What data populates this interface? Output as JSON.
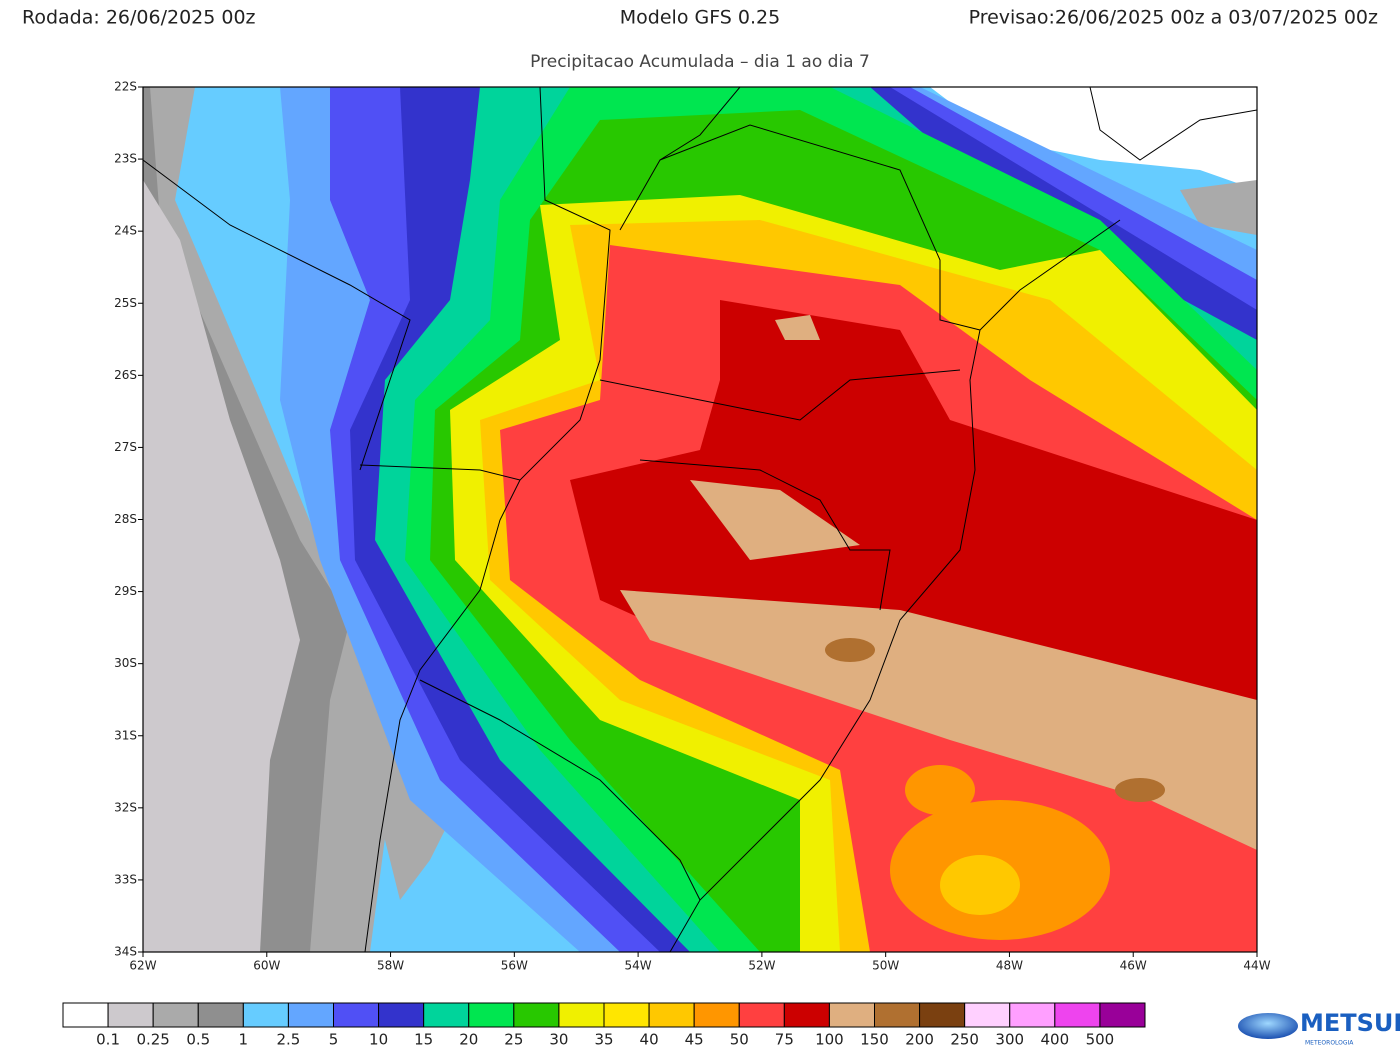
{
  "header": {
    "run": "Rodada: 26/06/2025 00z",
    "model": "Modelo GFS 0.25",
    "forecast": "Previsao:26/06/2025 00z a 03/07/2025 00z",
    "title": "Precipitacao Acumulada – dia 1 ao dia 7"
  },
  "map": {
    "lat_labels": [
      "22S",
      "23S",
      "24S",
      "25S",
      "26S",
      "27S",
      "28S",
      "29S",
      "30S",
      "31S",
      "32S",
      "33S",
      "34S"
    ],
    "lon_labels": [
      "62W",
      "60W",
      "58W",
      "56W",
      "54W",
      "52W",
      "50W",
      "48W",
      "46W",
      "44W"
    ]
  },
  "colorbar": {
    "colors": [
      "#ffffff",
      "#cdc9cd",
      "#aaaaaa",
      "#8f8f8f",
      "#66ccff",
      "#63a6ff",
      "#5050f5",
      "#3333cc",
      "#00d49b",
      "#00e650",
      "#28c800",
      "#f0f000",
      "#ffe600",
      "#ffc800",
      "#ff9600",
      "#ff4040",
      "#cc0000",
      "#dfaf80",
      "#b07030",
      "#7a4010",
      "#ffd0ff",
      "#ff9fff",
      "#ee44ee",
      "#990099"
    ],
    "labels": [
      "0.1",
      "0.25",
      "0.5",
      "1",
      "2.5",
      "5",
      "10",
      "15",
      "20",
      "25",
      "30",
      "35",
      "40",
      "45",
      "50",
      "75",
      "100",
      "150",
      "200",
      "250",
      "300",
      "400",
      "500"
    ]
  },
  "logo": {
    "name": "METSUL",
    "sub": "METEOROLOGIA"
  }
}
